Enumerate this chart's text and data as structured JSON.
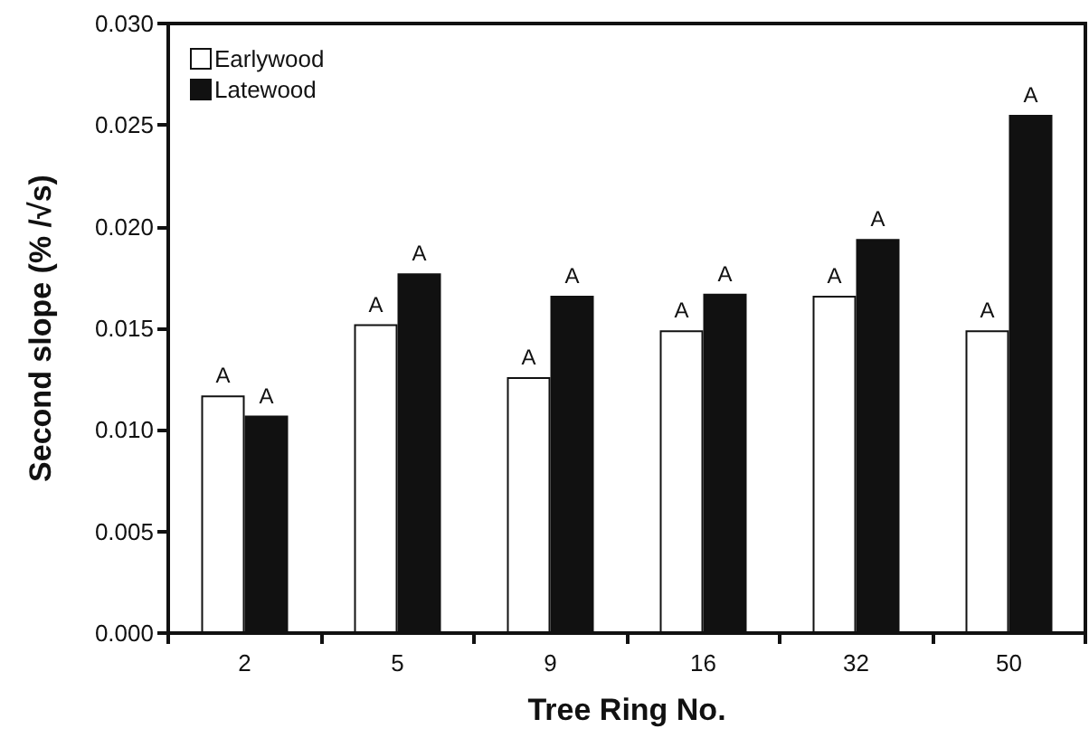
{
  "chart_data": {
    "type": "bar",
    "xlabel": "Tree Ring No.",
    "ylabel": "Second slope (% /√s)",
    "categories": [
      "2",
      "5",
      "9",
      "16",
      "32",
      "50"
    ],
    "series": [
      {
        "name": "Earlywood",
        "color": "#ffffff",
        "values": [
          0.0117,
          0.0152,
          0.0126,
          0.0149,
          0.0166,
          0.0149
        ],
        "value_labels": [
          "A",
          "A",
          "A",
          "A",
          "A",
          "A"
        ]
      },
      {
        "name": "Latewood",
        "color": "#111111",
        "values": [
          0.0107,
          0.0177,
          0.0166,
          0.0167,
          0.0194,
          0.0255
        ],
        "value_labels": [
          "A",
          "A",
          "A",
          "A",
          "A",
          "A"
        ]
      }
    ],
    "ylim": [
      0,
      0.03
    ],
    "yticks": [
      {
        "value": 0,
        "label": "0.000"
      },
      {
        "value": 0.005,
        "label": "0.005"
      },
      {
        "value": 0.01,
        "label": "0.010"
      },
      {
        "value": 0.015,
        "label": "0.015"
      },
      {
        "value": 0.02,
        "label": "0.020"
      },
      {
        "value": 0.025,
        "label": "0.025"
      },
      {
        "value": 0.03,
        "label": "0.030"
      }
    ],
    "grid": false,
    "legend": "top left"
  }
}
